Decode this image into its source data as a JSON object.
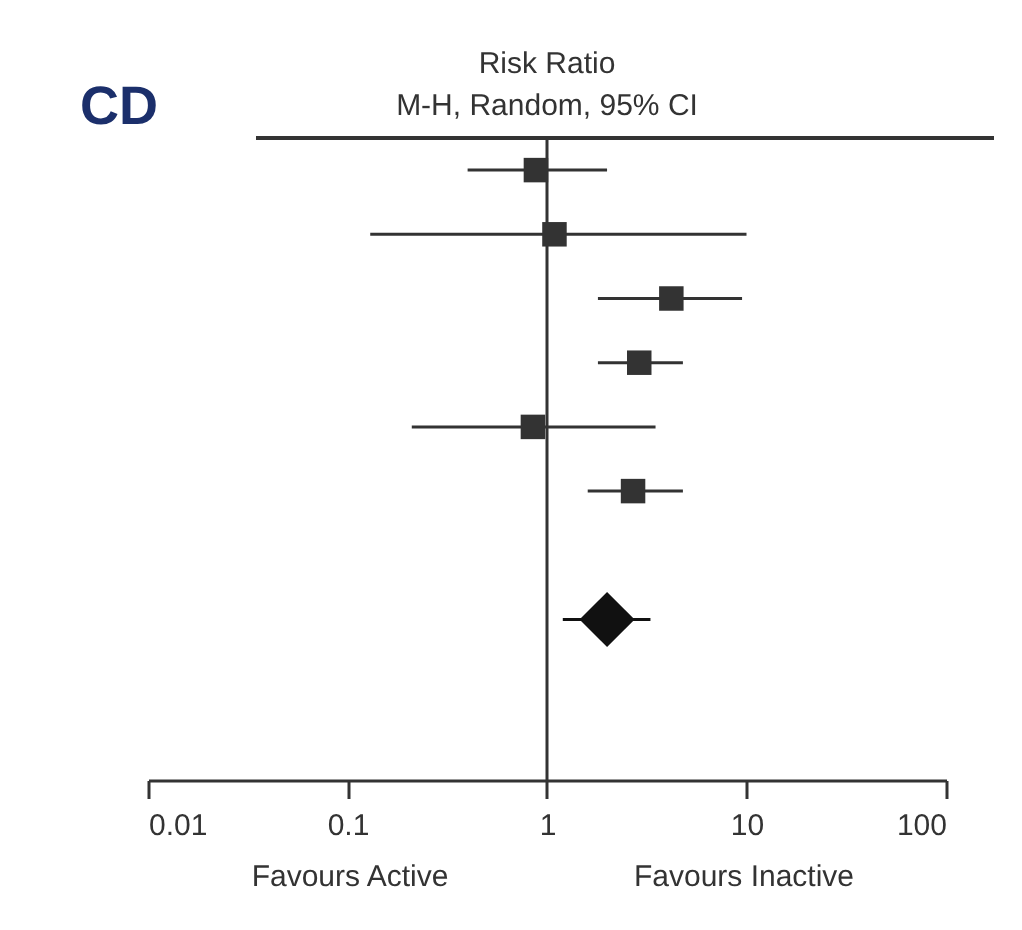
{
  "chart_data": {
    "type": "scatter",
    "orientation": "horizontal",
    "title": "Risk Ratio",
    "subtitle": "M-H, Random, 95% CI",
    "categories": [
      null,
      null,
      null,
      null,
      null,
      null,
      null,
      null,
      null,
      null
    ],
    "series": [
      {
        "color": "#333333",
        "marker": "square",
        "values": [
          0.88,
          1.09,
          4.2,
          2.9,
          0.85,
          2.7,
          null,
          null,
          null,
          null
        ],
        "errors": [
          [
            0.4,
            2.0
          ],
          [
            0.13,
            10
          ],
          [
            1.8,
            9.5
          ],
          [
            1.8,
            4.8
          ],
          [
            0.21,
            3.5
          ],
          [
            1.6,
            4.8
          ],
          null,
          null,
          null,
          null
        ]
      },
      {
        "color": "#111111",
        "marker": "diamond",
        "values": [
          null,
          null,
          null,
          null,
          null,
          null,
          null,
          2.0,
          null,
          null
        ],
        "errors": [
          null,
          null,
          null,
          null,
          null,
          null,
          null,
          [
            1.2,
            3.3
          ],
          null,
          null
        ]
      }
    ],
    "log": "x",
    "xlim": [
      0.01,
      100
    ],
    "xticks": [
      0.01,
      0.1,
      1,
      10,
      100
    ],
    "ref_lines": [
      {
        "axis": "x",
        "value": 1,
        "color": "#333333"
      }
    ],
    "tick_labels": "x",
    "legend": false,
    "grid": false,
    "annotations": [
      "CD",
      "Favours Active",
      "Favours Inactive"
    ]
  }
}
